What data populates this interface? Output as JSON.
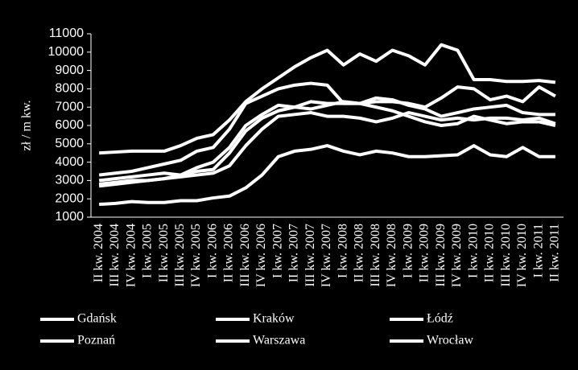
{
  "chart_data": {
    "type": "line",
    "y_label": "zł / m kw.",
    "categories": [
      "II kw. 2004",
      "III kw. 2004",
      "IV kw. 2004",
      "I kw. 2005",
      "II kw. 2005",
      "III kw. 2005",
      "IV kw. 2005",
      "I kw. 2006",
      "II kw. 2006",
      "III kw. 2006",
      "IV kw. 2006",
      "I kw. 2007",
      "II kw. 2007",
      "III kw. 2007",
      "IV kw. 2007",
      "I kw. 2008",
      "II kw. 2008",
      "III kw. 2008",
      "IV kw. 2008",
      "I kw. 2009",
      "II kw. 2009",
      "III kw. 2009",
      "IV kw. 2009",
      "I kw. 2010",
      "II kw. 2010",
      "III kw. 2010",
      "IV kw. 2010",
      "I kw. 2011",
      "II kw. 2011"
    ],
    "series": [
      {
        "name": "Gdańsk",
        "color": "#ffffff",
        "values": [
          3000,
          3100,
          3200,
          3300,
          3400,
          3300,
          3700,
          4000,
          4800,
          6000,
          6600,
          7100,
          7000,
          7300,
          7200,
          7200,
          7200,
          7500,
          7400,
          7100,
          6900,
          6500,
          6700,
          6900,
          7000,
          7100,
          6700,
          6600,
          6600
        ]
      },
      {
        "name": "Kraków",
        "color": "#ffffff",
        "values": [
          3300,
          3400,
          3500,
          3700,
          3900,
          4100,
          4600,
          4800,
          5800,
          7200,
          7600,
          8000,
          8200,
          8300,
          8200,
          7200,
          7200,
          7300,
          7300,
          7200,
          7000,
          7500,
          8100,
          8000,
          7400,
          7600,
          7300,
          8100,
          7600
        ]
      },
      {
        "name": "Łódź",
        "color": "#ffffff",
        "values": [
          1700,
          1750,
          1850,
          1800,
          1800,
          1900,
          1900,
          2050,
          2150,
          2600,
          3300,
          4300,
          4600,
          4700,
          4900,
          4600,
          4400,
          4600,
          4500,
          4300,
          4300,
          4350,
          4400,
          4900,
          4400,
          4300,
          4800,
          4300,
          4300
        ]
      },
      {
        "name": "Poznań",
        "color": "#ffffff",
        "values": [
          2800,
          2900,
          3000,
          3000,
          3100,
          3200,
          3300,
          3400,
          3800,
          4900,
          5800,
          6500,
          6600,
          6700,
          6500,
          6500,
          6400,
          6200,
          6400,
          6700,
          6500,
          6300,
          6400,
          6300,
          6400,
          6400,
          6300,
          6400,
          6100
        ]
      },
      {
        "name": "Warszawa",
        "color": "#ffffff",
        "values": [
          4500,
          4550,
          4600,
          4600,
          4600,
          4900,
          5300,
          5500,
          6300,
          7300,
          8000,
          8600,
          9200,
          9700,
          10100,
          9300,
          9900,
          9500,
          10100,
          9800,
          9300,
          10400,
          10100,
          8500,
          8500,
          8400,
          8400,
          8450,
          8350
        ]
      },
      {
        "name": "Wrocław",
        "color": "#ffffff",
        "values": [
          2700,
          2800,
          2900,
          3000,
          3100,
          3300,
          3500,
          3600,
          4500,
          5700,
          6400,
          6800,
          7000,
          6900,
          7100,
          7300,
          7200,
          7000,
          6800,
          6500,
          6200,
          6000,
          6100,
          6500,
          6300,
          6100,
          6200,
          6200,
          6000
        ]
      }
    ],
    "ylim": [
      1000,
      11000
    ],
    "yticks": [
      1000,
      2000,
      3000,
      4000,
      5000,
      6000,
      7000,
      8000,
      9000,
      10000,
      11000
    ]
  }
}
